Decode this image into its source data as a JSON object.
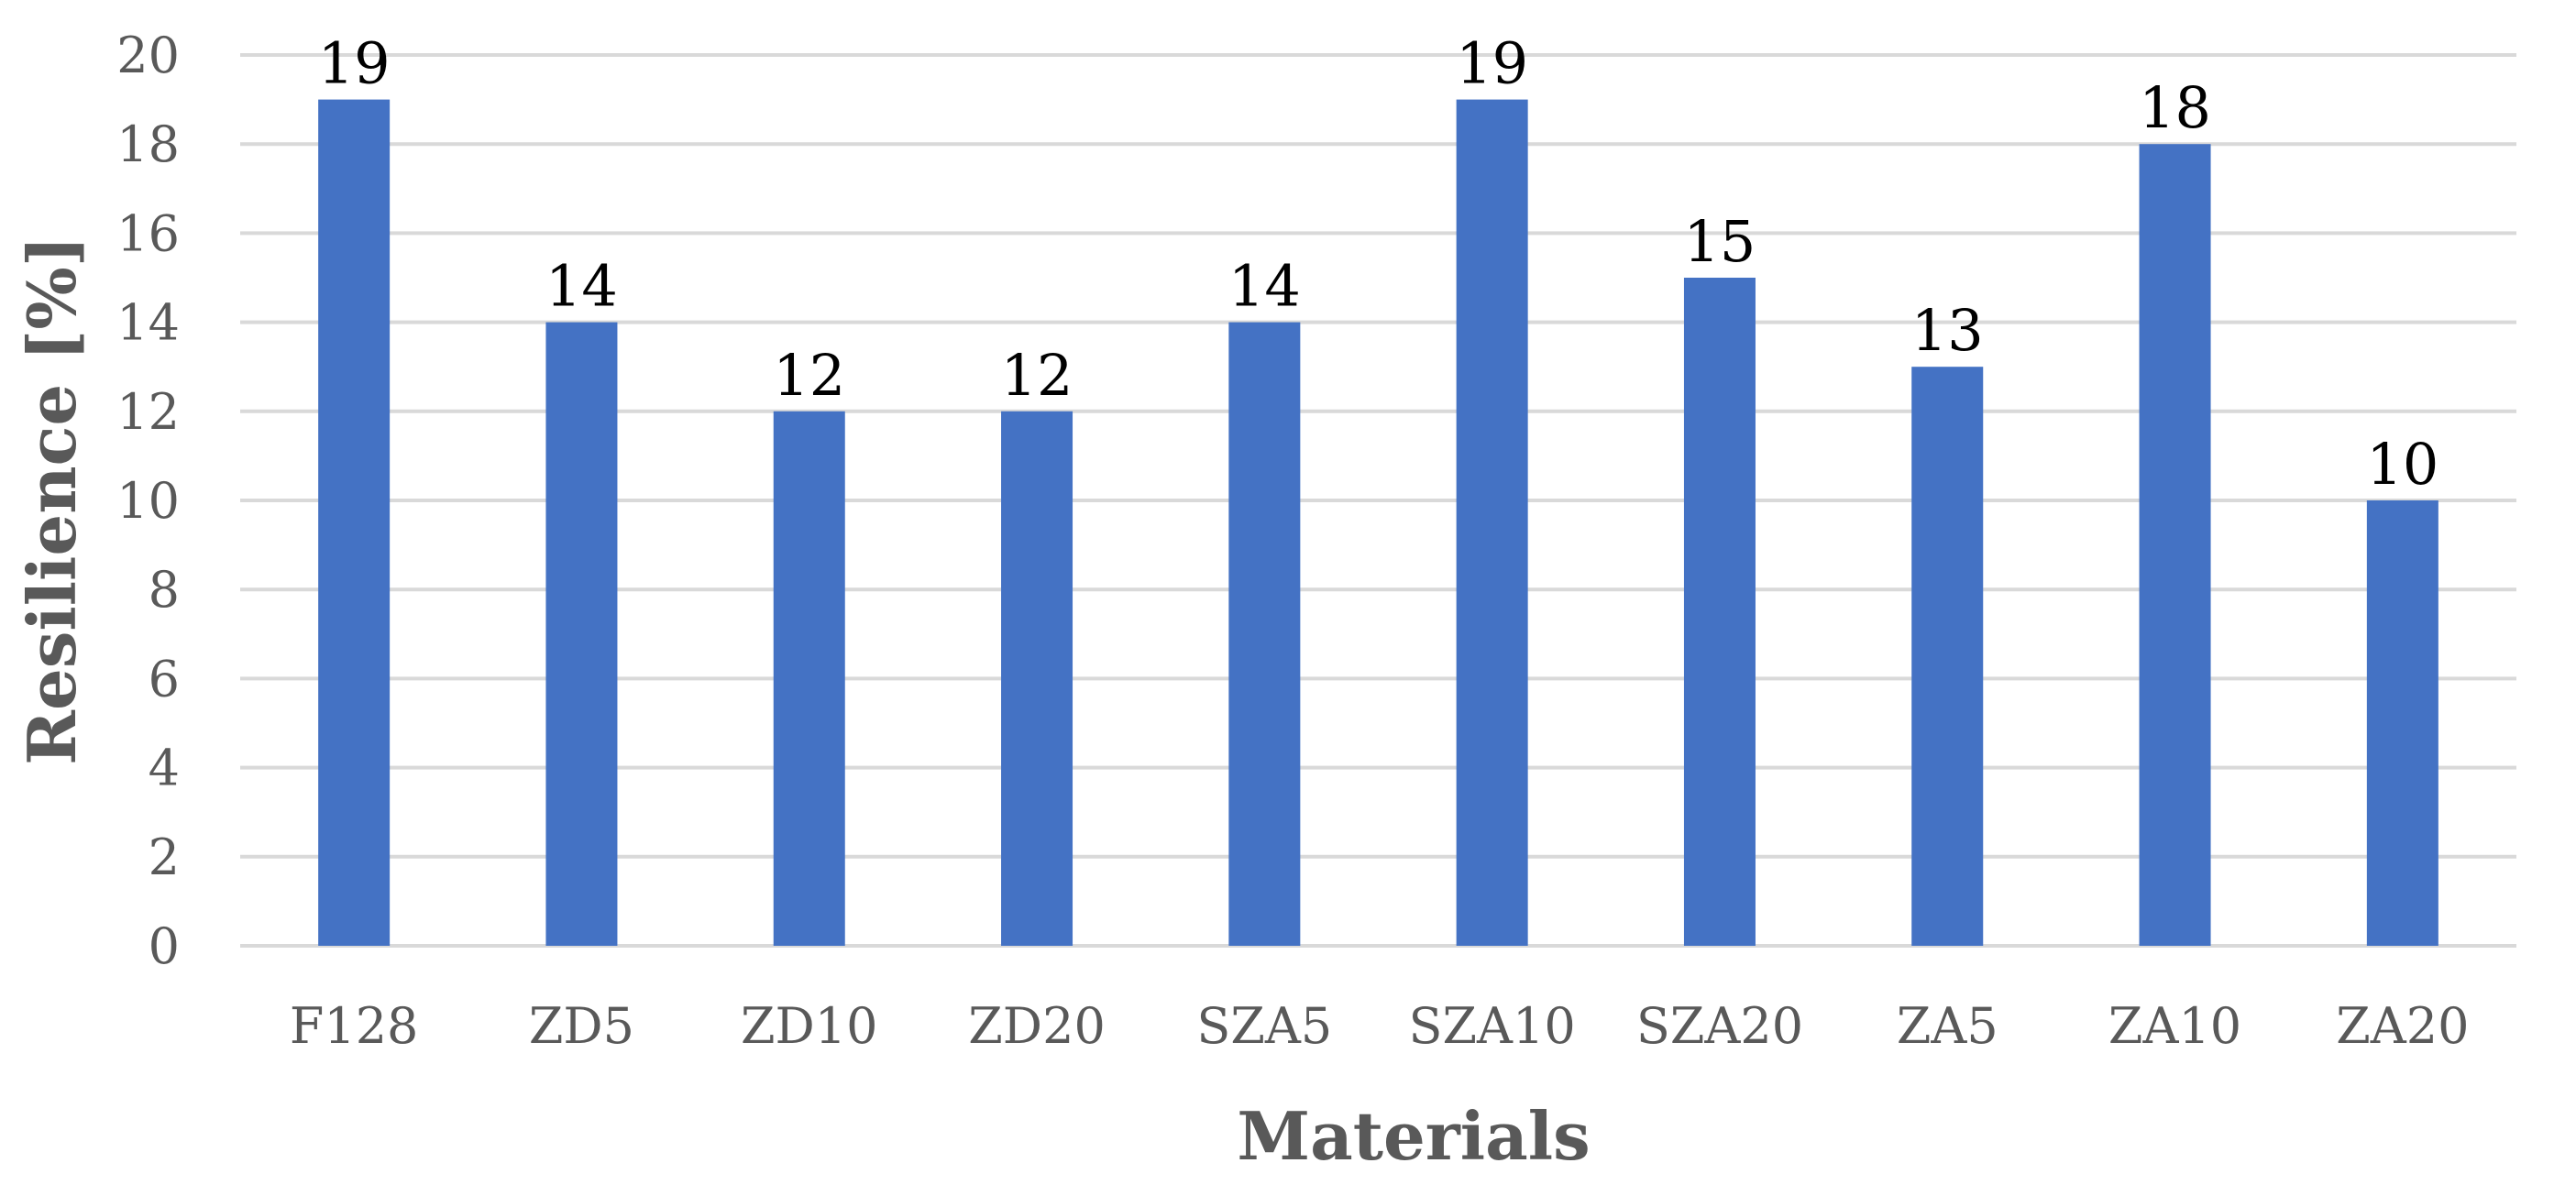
{
  "chart_data": {
    "type": "bar",
    "categories": [
      "F128",
      "ZD5",
      "ZD10",
      "ZD20",
      "SZA5",
      "SZA10",
      "SZA20",
      "ZA5",
      "ZA10",
      "ZA20"
    ],
    "values": [
      19,
      14,
      12,
      12,
      14,
      19,
      15,
      13,
      18,
      10
    ],
    "data_labels": [
      "19",
      "14",
      "12",
      "12",
      "14",
      "19",
      "15",
      "13",
      "18",
      "10"
    ],
    "xlabel": "Materials",
    "ylabel": "Resilience  [%]",
    "ylim": [
      0,
      20
    ],
    "yticks": [
      "0",
      "2",
      "4",
      "6",
      "8",
      "10",
      "12",
      "14",
      "16",
      "18",
      "20"
    ],
    "grid": true,
    "legend": "none",
    "bar_color": "#4472c4"
  }
}
